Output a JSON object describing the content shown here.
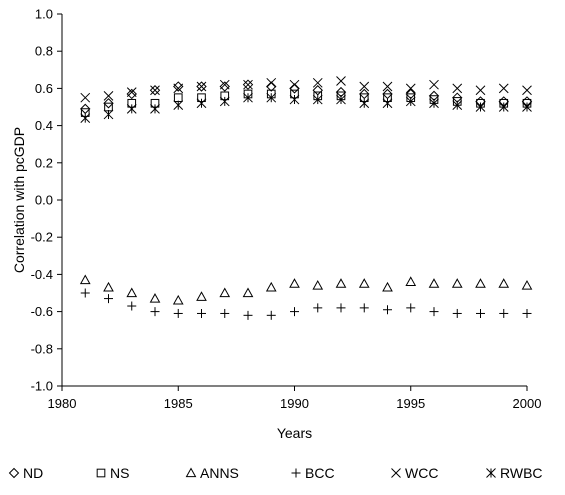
{
  "chart_data": {
    "type": "scatter",
    "title": "",
    "xlabel": "Years",
    "ylabel": "Correlation with pcGDP",
    "xlim": [
      1980,
      2000
    ],
    "ylim": [
      -1.0,
      1.0
    ],
    "x_ticks": [
      1980,
      1985,
      1990,
      1995,
      2000
    ],
    "y_ticks": [
      1.0,
      0.8,
      0.6,
      0.4,
      0.2,
      0.0,
      -0.2,
      -0.4,
      -0.6,
      -0.8,
      -1.0
    ],
    "x_tick_labels": [
      "1980",
      "1985",
      "1990",
      "1995",
      "2000"
    ],
    "y_tick_labels": [
      "1.0",
      "0.8",
      "0.6",
      "0.4",
      "0.2",
      "0.0",
      "-0.2",
      "-0.4",
      "-0.6",
      "-0.8",
      "-1.0"
    ],
    "grid": false,
    "legend_position": "bottom",
    "x": [
      1981,
      1982,
      1983,
      1984,
      1985,
      1986,
      1987,
      1988,
      1989,
      1990,
      1991,
      1992,
      1993,
      1994,
      1995,
      1996,
      1997,
      1998,
      1999,
      2000
    ],
    "series": [
      {
        "name": "ND",
        "marker": "diamond",
        "values": [
          0.49,
          0.52,
          0.57,
          0.59,
          0.61,
          0.61,
          0.61,
          0.62,
          0.61,
          0.6,
          0.59,
          0.58,
          0.57,
          0.57,
          0.57,
          0.56,
          0.55,
          0.53,
          0.53,
          0.53
        ]
      },
      {
        "name": "NS",
        "marker": "square",
        "values": [
          0.47,
          0.5,
          0.52,
          0.52,
          0.55,
          0.55,
          0.56,
          0.57,
          0.57,
          0.57,
          0.56,
          0.56,
          0.55,
          0.55,
          0.55,
          0.54,
          0.53,
          0.52,
          0.52,
          0.52
        ]
      },
      {
        "name": "ANNS",
        "marker": "triangle",
        "values": [
          -0.43,
          -0.47,
          -0.5,
          -0.53,
          -0.54,
          -0.52,
          -0.5,
          -0.5,
          -0.47,
          -0.45,
          -0.46,
          -0.45,
          -0.45,
          -0.47,
          -0.44,
          -0.45,
          -0.45,
          -0.45,
          -0.45,
          -0.46
        ]
      },
      {
        "name": "BCC",
        "marker": "plus",
        "values": [
          -0.5,
          -0.53,
          -0.57,
          -0.6,
          -0.61,
          -0.61,
          -0.61,
          -0.62,
          -0.62,
          -0.6,
          -0.58,
          -0.58,
          -0.58,
          -0.59,
          -0.58,
          -0.6,
          -0.61,
          -0.61,
          -0.61,
          -0.61
        ]
      },
      {
        "name": "WCC",
        "marker": "x",
        "values": [
          0.55,
          0.56,
          0.58,
          0.59,
          0.6,
          0.61,
          0.62,
          0.62,
          0.63,
          0.62,
          0.63,
          0.64,
          0.61,
          0.61,
          0.6,
          0.62,
          0.6,
          0.59,
          0.6,
          0.59
        ]
      },
      {
        "name": "RWBC",
        "marker": "asterisk",
        "values": [
          0.44,
          0.46,
          0.49,
          0.49,
          0.51,
          0.52,
          0.53,
          0.55,
          0.55,
          0.54,
          0.54,
          0.54,
          0.52,
          0.52,
          0.53,
          0.52,
          0.51,
          0.5,
          0.5,
          0.5
        ]
      }
    ]
  }
}
